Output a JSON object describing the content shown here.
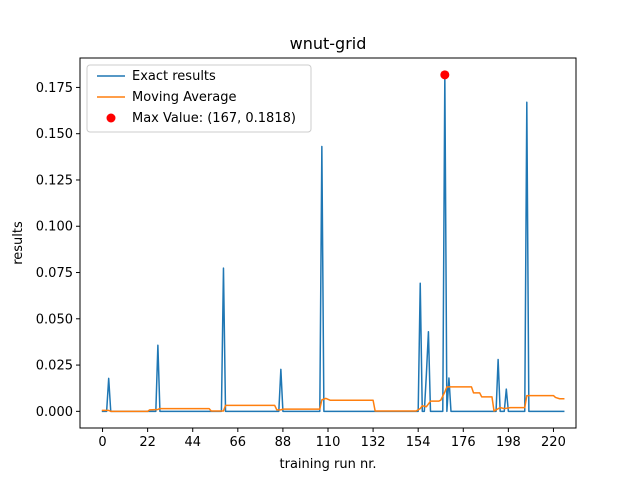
{
  "chart_data": {
    "type": "line",
    "title": "wnut-grid",
    "xlabel": "training run nr.",
    "ylabel": "results",
    "xlim": [
      -11,
      231
    ],
    "ylim": [
      -0.009,
      0.1909
    ],
    "xticks": [
      0,
      22,
      44,
      66,
      88,
      110,
      132,
      154,
      176,
      198,
      220
    ],
    "yticks": [
      0.0,
      0.025,
      0.05,
      0.075,
      0.1,
      0.125,
      0.15,
      0.175
    ],
    "ytick_labels": [
      "0.000",
      "0.025",
      "0.050",
      "0.075",
      "0.100",
      "0.125",
      "0.150",
      "0.175"
    ],
    "grid": false,
    "legend_position": "upper left",
    "series": [
      {
        "name": "Exact results",
        "color": "#1f77b4",
        "points": [
          [
            0,
            0
          ],
          [
            2,
            0
          ],
          [
            3,
            0.0178
          ],
          [
            4,
            0
          ],
          [
            26,
            0
          ],
          [
            27,
            0.0357
          ],
          [
            28,
            0
          ],
          [
            58,
            0
          ],
          [
            59,
            0.0774
          ],
          [
            60,
            0
          ],
          [
            86,
            0
          ],
          [
            87,
            0.0227
          ],
          [
            88,
            0
          ],
          [
            106,
            0
          ],
          [
            107,
            0.1431
          ],
          [
            108,
            0
          ],
          [
            154,
            0
          ],
          [
            155,
            0.0692
          ],
          [
            156,
            0
          ],
          [
            157,
            0
          ],
          [
            158,
            0.02
          ],
          [
            159,
            0.043
          ],
          [
            160,
            0
          ],
          [
            166,
            0
          ],
          [
            167,
            0.1818
          ],
          [
            168,
            0
          ],
          [
            169,
            0.018
          ],
          [
            170,
            0
          ],
          [
            192,
            0
          ],
          [
            193,
            0.028
          ],
          [
            194,
            0
          ],
          [
            196,
            0
          ],
          [
            197,
            0.012
          ],
          [
            198,
            0
          ],
          [
            206,
            0
          ],
          [
            207,
            0.167
          ],
          [
            208,
            0
          ],
          [
            225,
            0
          ]
        ]
      },
      {
        "name": "Moving Average",
        "color": "#ff7f0e",
        "points": [
          [
            0,
            0.0005
          ],
          [
            3,
            0.0005
          ],
          [
            4,
            0
          ],
          [
            22,
            0
          ],
          [
            23,
            0.0008
          ],
          [
            27,
            0.001
          ],
          [
            28,
            0.0015
          ],
          [
            52,
            0.0015
          ],
          [
            53,
            0.0002
          ],
          [
            59,
            0.0002
          ],
          [
            60,
            0.0032
          ],
          [
            84,
            0.0032
          ],
          [
            85,
            0.0008
          ],
          [
            87,
            0.0008
          ],
          [
            88,
            0.0012
          ],
          [
            106,
            0.0012
          ],
          [
            107,
            0.0062
          ],
          [
            109,
            0.007
          ],
          [
            111,
            0.006
          ],
          [
            132,
            0.006
          ],
          [
            133,
            0.0002
          ],
          [
            153,
            0.0002
          ],
          [
            155,
            0.0015
          ],
          [
            156,
            0.003
          ],
          [
            158,
            0.0025
          ],
          [
            160,
            0.0055
          ],
          [
            164,
            0.0055
          ],
          [
            165,
            0.006
          ],
          [
            167,
            0.0105
          ],
          [
            168,
            0.0132
          ],
          [
            180,
            0.0132
          ],
          [
            181,
            0.01
          ],
          [
            184,
            0.01
          ],
          [
            185,
            0.0078
          ],
          [
            190,
            0.0078
          ],
          [
            191,
            0.0002
          ],
          [
            194,
            0.002
          ],
          [
            196,
            0.0015
          ],
          [
            199,
            0.002
          ],
          [
            206,
            0.002
          ],
          [
            207,
            0.0085
          ],
          [
            220,
            0.0085
          ],
          [
            221,
            0.0075
          ],
          [
            223,
            0.0068
          ],
          [
            225,
            0.0068
          ]
        ]
      }
    ],
    "annotations": [
      {
        "label": "Max Value: (167, 0.1818)",
        "x": 167,
        "y": 0.1818,
        "color": "#ff0000",
        "marker": "circle"
      }
    ]
  }
}
